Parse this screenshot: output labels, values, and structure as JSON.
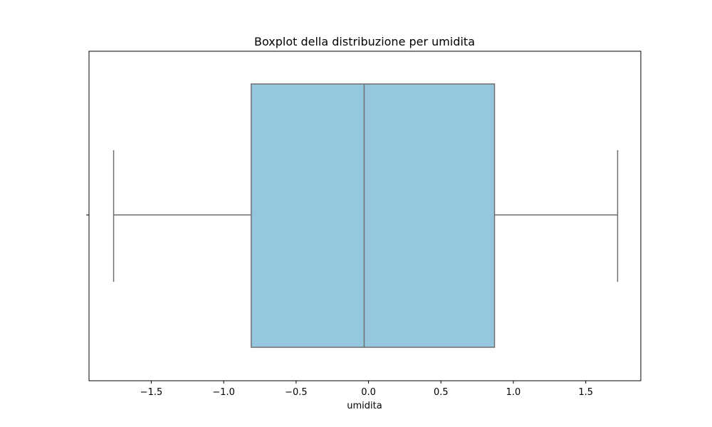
{
  "chart_data": {
    "type": "boxplot",
    "title": "Boxplot della distribuzione per umidita",
    "xlabel": "umidita",
    "ylabel": "",
    "orientation": "horizontal",
    "xlim": [
      -1.93,
      1.88
    ],
    "xticks": [
      -1.5,
      -1.0,
      -0.5,
      0.0,
      0.5,
      1.0,
      1.5
    ],
    "xtick_labels": [
      "−1.5",
      "−1.0",
      "−0.5",
      "0.0",
      "0.5",
      "1.0",
      "1.5"
    ],
    "box": {
      "whisker_low": -1.76,
      "q1": -0.81,
      "median": -0.03,
      "q3": 0.87,
      "whisker_high": 1.72
    },
    "colors": {
      "box_fill": "#95c8de",
      "line": "#6e6e6e"
    },
    "grid": false
  }
}
